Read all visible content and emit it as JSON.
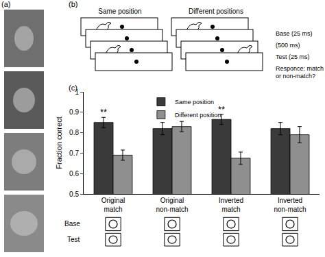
{
  "panel_labels": [
    "(a)",
    "(b)",
    "(c)"
  ],
  "diagram": {
    "columns": [
      "Same position",
      "Different positions"
    ],
    "steps": [
      "Base (25 ms)",
      "(500 ms)",
      "Test (25 ms)"
    ],
    "response": [
      "Responce: match",
      "or non-match?"
    ]
  },
  "chart_data": {
    "type": "bar",
    "categories": [
      "Original match",
      "Original non-match",
      "Inverted match",
      "Inverted non-match"
    ],
    "series": [
      {
        "name": "Same position",
        "color": "#3a3a3a",
        "values": [
          0.85,
          0.82,
          0.865,
          0.82
        ],
        "errors": [
          0.025,
          0.03,
          0.025,
          0.03
        ]
      },
      {
        "name": "Different position",
        "color": "#8f8f8f",
        "values": [
          0.69,
          0.83,
          0.675,
          0.79
        ],
        "errors": [
          0.025,
          0.025,
          0.03,
          0.04
        ]
      }
    ],
    "y_label": "Fraction correct",
    "ylim": [
      0.5,
      1
    ],
    "yticks": [
      0.5,
      0.6,
      0.7,
      0.8,
      0.9,
      1
    ],
    "legend": "top",
    "annotations": [
      {
        "text": "**",
        "category": "Original match",
        "series": "Same position"
      },
      {
        "text": "**",
        "category": "Inverted match",
        "series": "Same position"
      }
    ],
    "row_labels": [
      "Base",
      "Test"
    ]
  }
}
